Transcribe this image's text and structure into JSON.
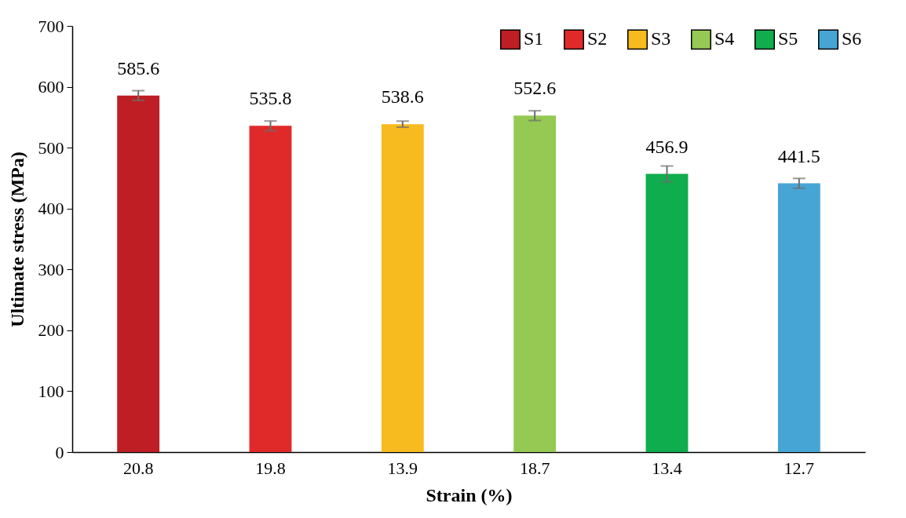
{
  "chart_data": {
    "type": "bar",
    "xlabel": "Strain (%)",
    "ylabel": "Ultimate stress (MPa)",
    "categories": [
      "20.8",
      "19.8",
      "13.9",
      "18.7",
      "13.4",
      "12.7"
    ],
    "series": [
      {
        "name": "S1",
        "color": "#be1e24",
        "values": [
          585.6,
          null,
          null,
          null,
          null,
          null
        ],
        "errors": [
          8,
          null,
          null,
          null,
          null,
          null
        ]
      },
      {
        "name": "S2",
        "color": "#e02a2a",
        "values": [
          null,
          535.8,
          null,
          null,
          null,
          null
        ],
        "errors": [
          null,
          8,
          null,
          null,
          null,
          null
        ]
      },
      {
        "name": "S3",
        "color": "#f7bb20",
        "values": [
          null,
          null,
          538.6,
          null,
          null,
          null
        ],
        "errors": [
          null,
          null,
          5,
          null,
          null,
          null
        ]
      },
      {
        "name": "S4",
        "color": "#95c953",
        "values": [
          null,
          null,
          null,
          552.6,
          null,
          null
        ],
        "errors": [
          null,
          null,
          null,
          8,
          null,
          null
        ]
      },
      {
        "name": "S5",
        "color": "#0fad4d",
        "values": [
          null,
          null,
          null,
          null,
          456.9,
          null
        ],
        "errors": [
          null,
          null,
          null,
          null,
          13,
          null
        ]
      },
      {
        "name": "S6",
        "color": "#47a5d5",
        "values": [
          null,
          null,
          null,
          null,
          null,
          441.5
        ],
        "errors": [
          null,
          null,
          null,
          null,
          null,
          8
        ]
      }
    ],
    "ylim": [
      0,
      700
    ],
    "yticks": [
      0,
      100,
      200,
      300,
      400,
      500,
      600,
      700
    ],
    "data_labels": true,
    "legend": "top right",
    "grid": false
  }
}
